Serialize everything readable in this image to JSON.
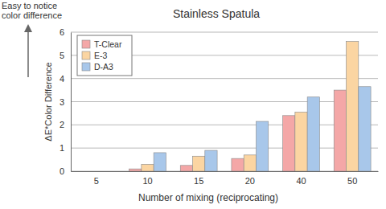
{
  "chart_data": {
    "type": "bar",
    "title": "Stainless Spatula",
    "annotation": "Easy to notice\ncolor difference",
    "x_label": "Number of mixing (reciprocating)",
    "y_label": "ΔE*Color Difference",
    "categories": [
      "5",
      "10",
      "15",
      "20",
      "40",
      "50"
    ],
    "series": [
      {
        "name": "T-Clear",
        "color": "#f4a7a7",
        "values": [
          0,
          0.1,
          0.25,
          0.55,
          2.4,
          3.5
        ]
      },
      {
        "name": "E-3",
        "color": "#fbd5a2",
        "values": [
          0,
          0.3,
          0.65,
          0.7,
          2.55,
          5.6
        ]
      },
      {
        "name": "D-A3",
        "color": "#a8c7ea",
        "values": [
          0,
          0.8,
          0.9,
          2.15,
          3.2,
          3.65
        ]
      }
    ],
    "ylim": [
      0,
      6
    ],
    "yticks": [
      0,
      1,
      2,
      3,
      4,
      5,
      6
    ],
    "grid": true,
    "legend": "upper left"
  }
}
